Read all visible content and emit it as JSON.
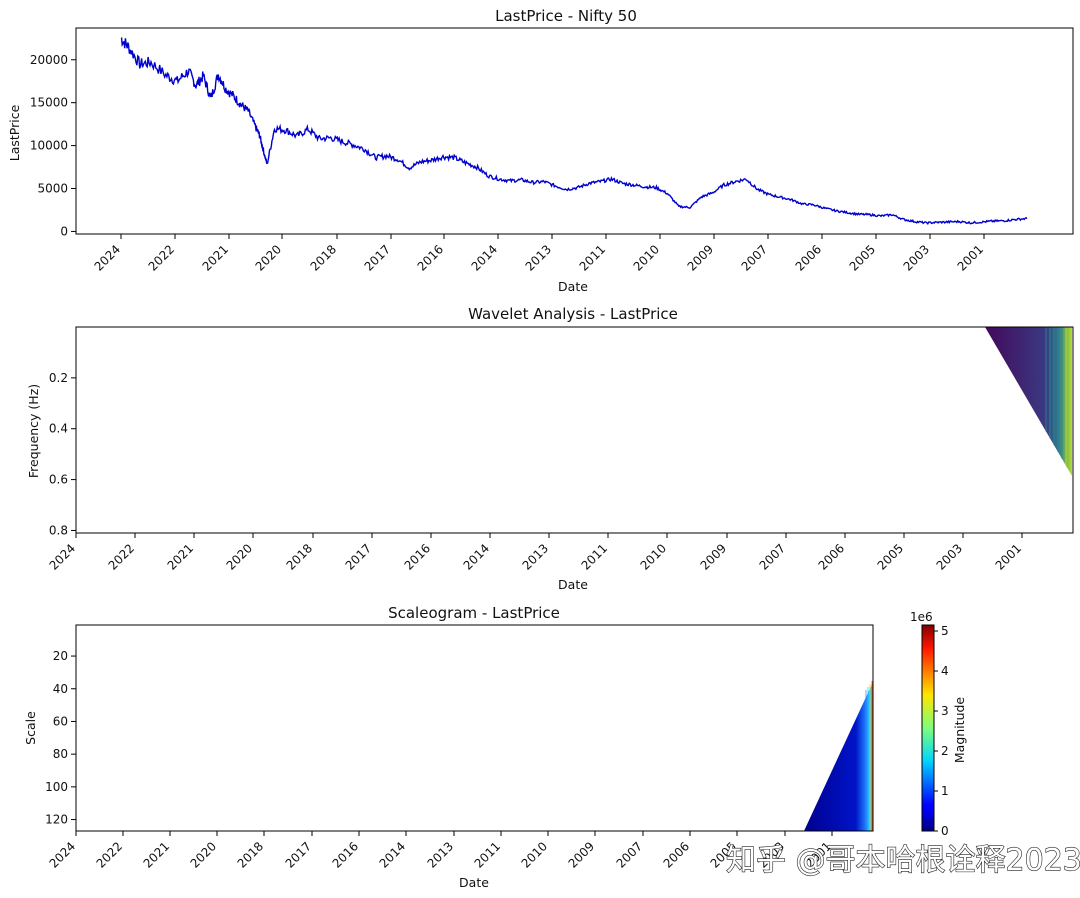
{
  "chart_data": [
    {
      "type": "line",
      "title": "LastPrice - Nifty 50",
      "xlabel": "Date",
      "ylabel": "LastPrice",
      "x_axis_reversed": true,
      "x_ticks": [
        "2024",
        "2022",
        "2021",
        "2020",
        "2018",
        "2017",
        "2016",
        "2014",
        "2013",
        "2011",
        "2010",
        "2009",
        "2007",
        "2006",
        "2005",
        "2003",
        "2001"
      ],
      "y_ticks": [
        0,
        5000,
        10000,
        15000,
        20000
      ],
      "ylim": [
        -300,
        23700
      ],
      "color": "#0000cc",
      "series": [
        {
          "x": [
            2024.0,
            2023.8,
            2023.5,
            2023.2,
            2022.8,
            2022.5,
            2022.2,
            2022.0,
            2021.8,
            2021.6,
            2021.4,
            2021.2,
            2021.0,
            2020.8,
            2020.6,
            2020.4,
            2020.3,
            2020.2,
            2020.1,
            2019.9,
            2019.6,
            2019.3,
            2019.0,
            2018.7,
            2018.4,
            2018.1,
            2017.8,
            2017.5,
            2017.2,
            2016.9,
            2016.6,
            2016.3,
            2016.0,
            2015.7,
            2015.4,
            2015.1,
            2014.8,
            2014.5,
            2014.2,
            2013.9,
            2013.6,
            2013.3,
            2013.0,
            2012.7,
            2012.4,
            2012.1,
            2011.8,
            2011.5,
            2011.2,
            2010.9,
            2010.6,
            2010.3,
            2010.0,
            2009.7,
            2009.4,
            2009.1,
            2008.8,
            2008.5,
            2008.2,
            2007.9,
            2007.6,
            2007.3,
            2007.0,
            2006.7,
            2006.4,
            2006.1,
            2005.8,
            2005.5,
            2005.2,
            2004.9,
            2004.6,
            2004.3,
            2004.0,
            2003.7,
            2003.4,
            2003.1,
            2002.8,
            2002.5,
            2002.2,
            2001.9,
            2001.6,
            2001.3,
            2001.0,
            2000.7,
            2000.4,
            2000.1,
            1999.8
          ],
          "y": [
            22500,
            21500,
            19500,
            19700,
            18200,
            17500,
            18700,
            17000,
            18100,
            15500,
            18300,
            16600,
            15800,
            14800,
            14000,
            12100,
            11200,
            9500,
            7800,
            12000,
            11800,
            11100,
            11900,
            10800,
            10900,
            10500,
            10100,
            9600,
            8600,
            8800,
            8400,
            7400,
            8100,
            8300,
            8700,
            8600,
            8000,
            7500,
            6500,
            6100,
            5900,
            6000,
            5700,
            5800,
            5300,
            4900,
            5100,
            5600,
            5800,
            6100,
            5600,
            5400,
            5200,
            5100,
            4400,
            2900,
            2800,
            4000,
            4500,
            5400,
            5800,
            6100,
            4900,
            4300,
            4000,
            3700,
            3200,
            3100,
            2700,
            2400,
            2200,
            2000,
            1950,
            1800,
            1950,
            1400,
            1150,
            1000,
            1050,
            1100,
            1150,
            1000,
            1100,
            1200,
            1250,
            1400,
            1500
          ]
        }
      ]
    },
    {
      "type": "heatmap",
      "title": "Wavelet Analysis - LastPrice",
      "xlabel": "Date",
      "ylabel": "Frequency (Hz)",
      "x_ticks": [
        "2024",
        "2022",
        "2021",
        "2020",
        "2018",
        "2017",
        "2016",
        "2014",
        "2013",
        "2011",
        "2010",
        "2009",
        "2007",
        "2006",
        "2005",
        "2003",
        "2001"
      ],
      "y_ticks": [
        0.2,
        0.4,
        0.6,
        0.8
      ],
      "ylim": [
        0.81,
        0.0
      ],
      "colormap": "viridis",
      "nonzero_region": "triangular wedge at right edge, x from ~2001.9 to end, frequency 0 to ~0.58"
    },
    {
      "type": "heatmap",
      "title": "Scaleogram - LastPrice",
      "xlabel": "Date",
      "ylabel": "Scale",
      "x_ticks": [
        "2024",
        "2022",
        "2021",
        "2020",
        "2018",
        "2017",
        "2016",
        "2014",
        "2013",
        "2011",
        "2010",
        "2009",
        "2007",
        "2006",
        "2005",
        "2003",
        "2001"
      ],
      "y_ticks": [
        20,
        40,
        60,
        80,
        100,
        120
      ],
      "ylim": [
        127,
        1
      ],
      "colormap": "jet",
      "nonzero_region": "triangular wedge at right edge, scale ~36 to 127",
      "colorbar": {
        "label": "Magnitude",
        "offset_text": "1e6",
        "ticks": [
          0,
          1,
          2,
          3,
          4,
          5
        ],
        "range": [
          0,
          5.15
        ]
      }
    }
  ],
  "watermark": "知乎 @哥本哈根诠释2023"
}
